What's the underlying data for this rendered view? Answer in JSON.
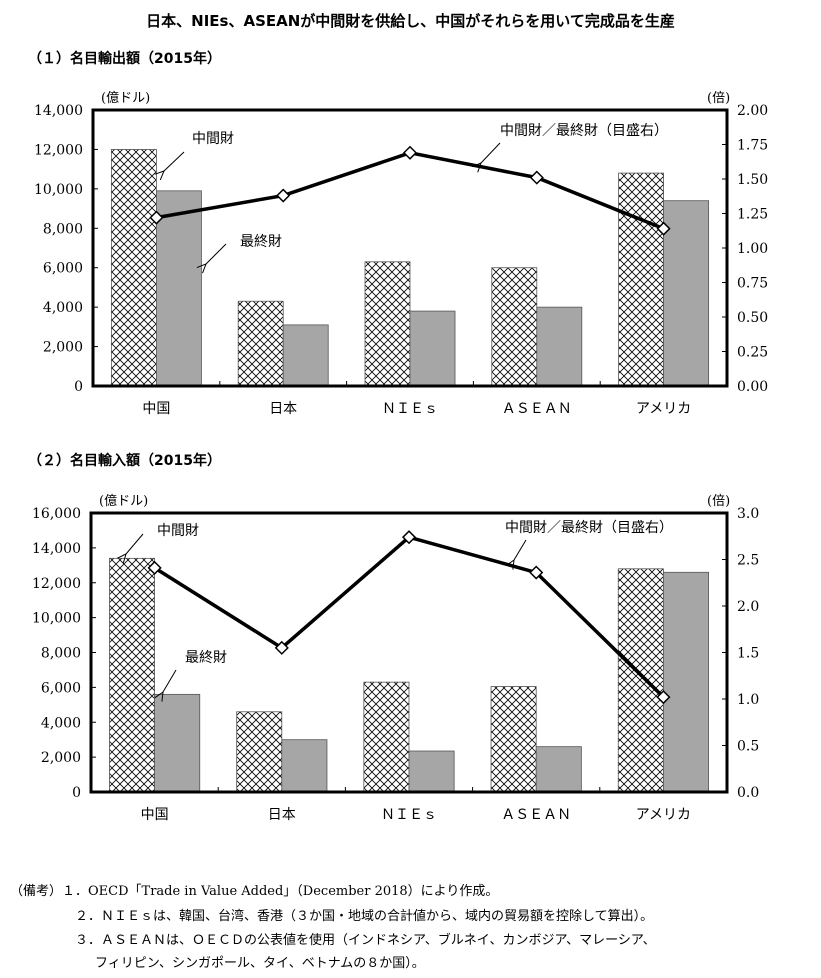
{
  "title": "日本、NIEs、ASEANが中間財を供給し、中国がそれらを用いて完成品を生産",
  "chart_data": [
    {
      "type": "bar",
      "subtitle": "（１）名目輸出額（2015年）",
      "categories": [
        "中国",
        "日本",
        "ＮＩＥｓ",
        "ＡＳＥＡＮ",
        "アメリカ"
      ],
      "series": [
        {
          "name": "中間財",
          "type": "bar",
          "pattern": "crosshatch",
          "values": [
            12000,
            4300,
            6300,
            6000,
            10800
          ]
        },
        {
          "name": "最終財",
          "type": "bar",
          "color": "#a6a6a6",
          "values": [
            9900,
            3100,
            3800,
            4000,
            9400
          ]
        },
        {
          "name": "中間財／最終財（目盛右）",
          "type": "line",
          "axis": "right",
          "color": "#000000",
          "values": [
            1.22,
            1.38,
            1.69,
            1.51,
            1.14
          ]
        }
      ],
      "ylabel": "(億ドル)",
      "y2label": "(倍)",
      "ylim": [
        0,
        14000
      ],
      "y2lim": [
        0,
        2.0
      ],
      "yticks": [
        "0",
        "2,000",
        "4,000",
        "6,000",
        "8,000",
        "10,000",
        "12,000",
        "14,000"
      ],
      "y2ticks": [
        "0.00",
        "0.25",
        "0.50",
        "0.75",
        "1.00",
        "1.25",
        "1.50",
        "1.75",
        "2.00"
      ],
      "grid": false
    },
    {
      "type": "bar",
      "subtitle": "（２）名目輸入額（2015年）",
      "categories": [
        "中国",
        "日本",
        "ＮＩＥｓ",
        "ＡＳＥＡＮ",
        "アメリカ"
      ],
      "series": [
        {
          "name": "中間財",
          "type": "bar",
          "pattern": "crosshatch",
          "values": [
            13400,
            4600,
            6300,
            6050,
            12800
          ]
        },
        {
          "name": "最終財",
          "type": "bar",
          "color": "#a6a6a6",
          "values": [
            5600,
            3000,
            2350,
            2600,
            12600
          ]
        },
        {
          "name": "中間財／最終財（目盛右）",
          "type": "line",
          "axis": "right",
          "color": "#000000",
          "values": [
            2.41,
            1.55,
            2.74,
            2.36,
            1.02
          ]
        }
      ],
      "ylabel": "(億ドル)",
      "y2label": "(倍)",
      "ylim": [
        0,
        16000
      ],
      "y2lim": [
        0,
        3.0
      ],
      "yticks": [
        "0",
        "2,000",
        "4,000",
        "6,000",
        "8,000",
        "10,000",
        "12,000",
        "14,000",
        "16,000"
      ],
      "y2ticks": [
        "0.0",
        "0.5",
        "1.0",
        "1.5",
        "2.0",
        "2.5",
        "3.0"
      ],
      "grid": false
    }
  ],
  "notes": [
    "（備考）１．OECD「Trade in Value Added」（December 2018）により作成。",
    "２．ＮＩＥｓは、韓国、台湾、香港（３か国・地域の合計値から、域内の貿易額を控除して算出）。",
    "３．ＡＳＥＡＮは、ＯＥＣＤの公表値を使用（インドネシア、ブルネイ、カンボジア、マレーシア、",
    "フィリピン、シンガポール、タイ、ベトナムの８か国）。"
  ]
}
